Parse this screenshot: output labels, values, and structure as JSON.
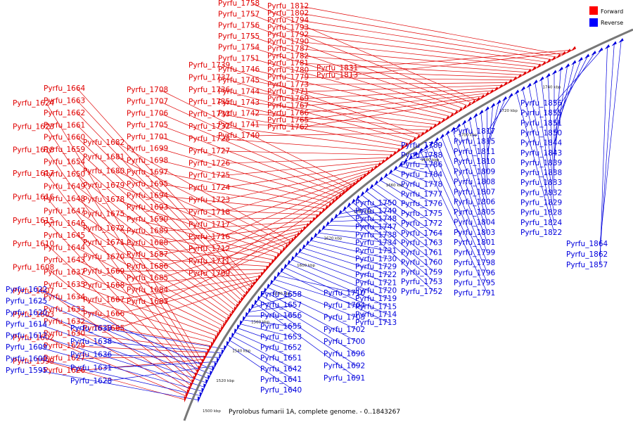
{
  "caption": "Pyrolobus fumarii 1A, complete genome. - 0..1843267",
  "legend": [
    {
      "name": "Forward",
      "color": "#ff0000"
    },
    {
      "name": "Reverse",
      "color": "#0000ff"
    }
  ],
  "colors": {
    "forward": "#e00000",
    "reverse": "#0000dd",
    "backbone": "#777777"
  },
  "ticks": [
    "1500 kbp",
    "1520 kbp",
    "1540 kbp",
    "1560 kbp",
    "1580 kbp",
    "1600 kbp",
    "1620 kbp",
    "1640 kbp",
    "1660 kbp",
    "1680 kbp",
    "1700 kbp",
    "1720 kbp",
    "1740 kbp"
  ],
  "forward_genes": [
    "Pyrfu_1599",
    "Pyrfu_1602",
    "Pyrfu_1603",
    "Pyrfu_1607",
    "Pyrfu_1608",
    "Pyrfu_1610",
    "Pyrfu_1615",
    "Pyrfu_1616",
    "Pyrfu_1617",
    "Pyrfu_1618",
    "Pyrfu_1623",
    "Pyrfu_1624",
    "Pyrfu_1626",
    "Pyrfu_1627",
    "Pyrfu_1629",
    "Pyrfu_1630",
    "Pyrfu_1632",
    "Pyrfu_1633",
    "Pyrfu_1634",
    "Pyrfu_1635",
    "Pyrfu_1637",
    "Pyrfu_1643",
    "Pyrfu_1644",
    "Pyrfu_1645",
    "Pyrfu_1646",
    "Pyrfu_1647",
    "Pyrfu_1648",
    "Pyrfu_1649",
    "Pyrfu_1650",
    "Pyrfu_1654",
    "Pyrfu_1659",
    "Pyrfu_1660",
    "Pyrfu_1661",
    "Pyrfu_1662",
    "Pyrfu_1663",
    "Pyrfu_1664",
    "Pyrfu_1665",
    "Pyrfu_1666",
    "Pyrfu_1667",
    "Pyrfu_1668",
    "Pyrfu_1669",
    "Pyrfu_1670",
    "Pyrfu_1671",
    "Pyrfu_1672",
    "Pyrfu_1675",
    "Pyrfu_1678",
    "Pyrfu_1679",
    "Pyrfu_1680",
    "Pyrfu_1681",
    "Pyrfu_1682",
    "Pyrfu_1683",
    "Pyrfu_1684",
    "Pyrfu_1685",
    "Pyrfu_1686",
    "Pyrfu_1687",
    "Pyrfu_1688",
    "Pyrfu_1689",
    "Pyrfu_1690",
    "Pyrfu_1693",
    "Pyrfu_1694",
    "Pyrfu_1695",
    "Pyrfu_1697",
    "Pyrfu_1698",
    "Pyrfu_1699",
    "Pyrfu_1701",
    "Pyrfu_1705",
    "Pyrfu_1706",
    "Pyrfu_1707",
    "Pyrfu_1708",
    "Pyrfu_1709",
    "Pyrfu_1711",
    "Pyrfu_1712",
    "Pyrfu_1716",
    "Pyrfu_1717",
    "Pyrfu_1718",
    "Pyrfu_1723",
    "Pyrfu_1724",
    "Pyrfu_1725",
    "Pyrfu_1726",
    "Pyrfu_1727",
    "Pyrfu_1728",
    "Pyrfu_1732",
    "Pyrfu_1733",
    "Pyrfu_1735",
    "Pyrfu_1736",
    "Pyrfu_1737",
    "Pyrfu_1739",
    "Pyrfu_1740",
    "Pyrfu_1741",
    "Pyrfu_1742",
    "Pyrfu_1743",
    "Pyrfu_1744",
    "Pyrfu_1745",
    "Pyrfu_1746",
    "Pyrfu_1751",
    "Pyrfu_1754",
    "Pyrfu_1755",
    "Pyrfu_1756",
    "Pyrfu_1757",
    "Pyrfu_1758",
    "Pyrfu_1762",
    "Pyrfu_1765",
    "Pyrfu_1766",
    "Pyrfu_1767",
    "Pyrfu_1769",
    "Pyrfu_1771",
    "Pyrfu_1773",
    "Pyrfu_1779",
    "Pyrfu_1780",
    "Pyrfu_1781",
    "Pyrfu_1782",
    "Pyrfu_1787",
    "Pyrfu_1790",
    "Pyrfu_1792",
    "Pyrfu_1793",
    "Pyrfu_1794",
    "Pyrfu_1802",
    "Pyrfu_1812",
    "Pyrfu_1813",
    "Pyrfu_1831"
  ],
  "reverse_genes": [
    "Pyrfu_1595",
    "Pyrfu_1600",
    "Pyrfu_1609",
    "Pyrfu_1612",
    "Pyrfu_1614",
    "Pyrfu_1620",
    "Pyrfu_1625",
    "Pyrfu_1622",
    "Pyrfu_1628",
    "Pyrfu_1631",
    "Pyrfu_1636",
    "Pyrfu_1638",
    "Pyrfu_1639",
    "Pyrfu_1640",
    "Pyrfu_1641",
    "Pyrfu_1642",
    "Pyrfu_1651",
    "Pyrfu_1652",
    "Pyrfu_1653",
    "Pyrfu_1655",
    "Pyrfu_1656",
    "Pyrfu_1657",
    "Pyrfu_1658",
    "Pyrfu_1691",
    "Pyrfu_1692",
    "Pyrfu_1696",
    "Pyrfu_1700",
    "Pyrfu_1702",
    "Pyrfu_1703",
    "Pyrfu_1704",
    "Pyrfu_1710",
    "Pyrfu_1713",
    "Pyrfu_1714",
    "Pyrfu_1715",
    "Pyrfu_1719",
    "Pyrfu_1720",
    "Pyrfu_1721",
    "Pyrfu_1722",
    "Pyrfu_1729",
    "Pyrfu_1730",
    "Pyrfu_1731",
    "Pyrfu_1734",
    "Pyrfu_1738",
    "Pyrfu_1747",
    "Pyrfu_1748",
    "Pyrfu_1749",
    "Pyrfu_1750",
    "Pyrfu_1752",
    "Pyrfu_1753",
    "Pyrfu_1759",
    "Pyrfu_1760",
    "Pyrfu_1761",
    "Pyrfu_1763",
    "Pyrfu_1764",
    "Pyrfu_1772",
    "Pyrfu_1775",
    "Pyrfu_1776",
    "Pyrfu_1777",
    "Pyrfu_1778",
    "Pyrfu_1784",
    "Pyrfu_1786",
    "Pyrfu_1788",
    "Pyrfu_1789",
    "Pyrfu_1791",
    "Pyrfu_1795",
    "Pyrfu_1796",
    "Pyrfu_1798",
    "Pyrfu_1799",
    "Pyrfu_1801",
    "Pyrfu_1803",
    "Pyrfu_1804",
    "Pyrfu_1805",
    "Pyrfu_1806",
    "Pyrfu_1807",
    "Pyrfu_1808",
    "Pyrfu_1809",
    "Pyrfu_1810",
    "Pyrfu_1811",
    "Pyrfu_1815",
    "Pyrfu_1817",
    "Pyrfu_1822",
    "Pyrfu_1824",
    "Pyrfu_1828",
    "Pyrfu_1829",
    "Pyrfu_1832",
    "Pyrfu_1833",
    "Pyrfu_1838",
    "Pyrfu_1839",
    "Pyrfu_1843",
    "Pyrfu_1844",
    "Pyrfu_1850",
    "Pyrfu_1851",
    "Pyrfu_1855",
    "Pyrfu_1856",
    "Pyrfu_1857",
    "Pyrfu_1862",
    "Pyrfu_1864"
  ]
}
